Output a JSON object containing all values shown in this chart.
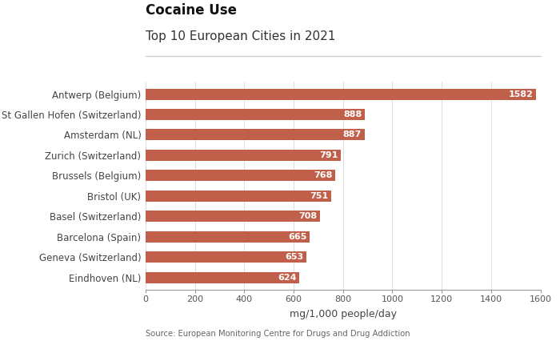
{
  "title_main": "Cocaine Use",
  "title_sub": "Top 10 European Cities in 2021",
  "categories": [
    "Eindhoven (NL)",
    "Geneva (Switzerland)",
    "Barcelona (Spain)",
    "Basel (Switzerland)",
    "Bristol (UK)",
    "Brussels (Belgium)",
    "Zurich (Switzerland)",
    "Amsterdam (NL)",
    "St Gallen Hofen (Switzerland)",
    "Antwerp (Belgium)"
  ],
  "values": [
    624,
    653,
    665,
    708,
    751,
    768,
    791,
    887,
    888,
    1582
  ],
  "bar_color": "#c0604a",
  "xlabel": "mg/1,000 people/day",
  "xlim": [
    0,
    1600
  ],
  "xticks": [
    0,
    200,
    400,
    600,
    800,
    1000,
    1200,
    1400,
    1600
  ],
  "source_text": "Source: European Monitoring Centre for Drugs and Drug Addiction",
  "background_color": "#ffffff",
  "label_color": "#ffffff",
  "label_fontsize": 8,
  "bar_height": 0.55,
  "title_main_fontsize": 12,
  "title_sub_fontsize": 11,
  "ytick_fontsize": 8.5,
  "xtick_fontsize": 8,
  "xlabel_fontsize": 9
}
